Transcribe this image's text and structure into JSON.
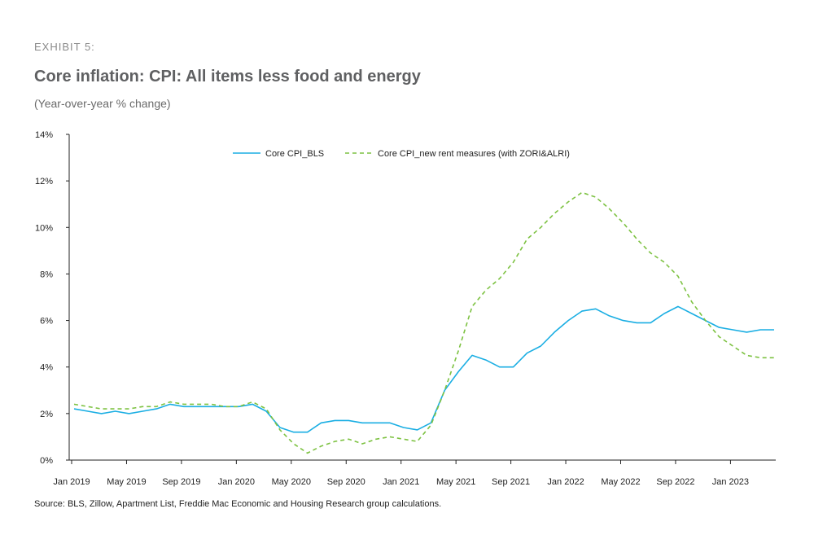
{
  "header": {
    "exhibit": "EXHIBIT 5:",
    "title": "Core inflation: CPI: All items less food and energy",
    "subtitle": "(Year-over-year % change)"
  },
  "footer": {
    "source": "Source: BLS, Zillow, Apartment List, Freddie Mac Economic and Housing Research group calculations."
  },
  "colors": {
    "bls": "#1aaee3",
    "new": "#7dc242",
    "axis": "#222222"
  },
  "chart_data": {
    "type": "line",
    "title": "Core inflation: CPI: All items less food and energy",
    "ylabel": "Year-over-year % change",
    "ylim": [
      0,
      14
    ],
    "yticks": [
      0,
      2,
      4,
      6,
      8,
      10,
      12,
      14
    ],
    "ytick_labels": [
      "0%",
      "2%",
      "4%",
      "6%",
      "8%",
      "10%",
      "12%",
      "14%"
    ],
    "xtick_labels": [
      "Jan 2019",
      "May 2019",
      "Sep 2019",
      "Jan 2020",
      "May 2020",
      "Sep 2020",
      "Jan 2021",
      "May 2021",
      "Sep 2021",
      "Jan 2022",
      "May 2022",
      "Sep 2022",
      "Jan 2023"
    ],
    "xtick_index": [
      0,
      4,
      8,
      12,
      16,
      20,
      24,
      28,
      32,
      36,
      40,
      44,
      48
    ],
    "x": [
      "Jan 2019",
      "Feb 2019",
      "Mar 2019",
      "Apr 2019",
      "May 2019",
      "Jun 2019",
      "Jul 2019",
      "Aug 2019",
      "Sep 2019",
      "Oct 2019",
      "Nov 2019",
      "Dec 2019",
      "Jan 2020",
      "Feb 2020",
      "Mar 2020",
      "Apr 2020",
      "May 2020",
      "Jun 2020",
      "Jul 2020",
      "Aug 2020",
      "Sep 2020",
      "Oct 2020",
      "Nov 2020",
      "Dec 2020",
      "Jan 2021",
      "Feb 2021",
      "Mar 2021",
      "Apr 2021",
      "May 2021",
      "Jun 2021",
      "Jul 2021",
      "Aug 2021",
      "Sep 2021",
      "Oct 2021",
      "Nov 2021",
      "Dec 2021",
      "Jan 2022",
      "Feb 2022",
      "Mar 2022",
      "Apr 2022",
      "May 2022",
      "Jun 2022",
      "Jul 2022",
      "Aug 2022",
      "Sep 2022",
      "Oct 2022",
      "Nov 2022",
      "Dec 2022",
      "Jan 2023",
      "Feb 2023",
      "Mar 2023",
      "Apr 2023"
    ],
    "legend": {
      "placement": "top-center"
    },
    "series": [
      {
        "name": "Core CPI_BLS",
        "style": "solid",
        "color_key": "bls",
        "values": [
          2.2,
          2.1,
          2.0,
          2.1,
          2.0,
          2.1,
          2.2,
          2.4,
          2.3,
          2.3,
          2.3,
          2.3,
          2.3,
          2.4,
          2.1,
          1.4,
          1.2,
          1.2,
          1.6,
          1.7,
          1.7,
          1.6,
          1.6,
          1.6,
          1.4,
          1.3,
          1.6,
          3.0,
          3.8,
          4.5,
          4.3,
          4.0,
          4.0,
          4.6,
          4.9,
          5.5,
          6.0,
          6.4,
          6.5,
          6.2,
          6.0,
          5.9,
          5.9,
          6.3,
          6.6,
          6.3,
          6.0,
          5.7,
          5.6,
          5.5,
          5.6,
          5.6
        ]
      },
      {
        "name": "Core CPI_new rent measures (with ZORI&ALRI)",
        "style": "dashed",
        "color_key": "new",
        "values": [
          2.4,
          2.3,
          2.2,
          2.2,
          2.2,
          2.3,
          2.3,
          2.5,
          2.4,
          2.4,
          2.4,
          2.3,
          2.3,
          2.5,
          2.2,
          1.3,
          0.7,
          0.3,
          0.6,
          0.8,
          0.9,
          0.7,
          0.9,
          1.0,
          0.9,
          0.8,
          1.5,
          3.0,
          4.7,
          6.6,
          7.3,
          7.8,
          8.5,
          9.5,
          10.0,
          10.6,
          11.1,
          11.5,
          11.3,
          10.8,
          10.2,
          9.5,
          8.9,
          8.5,
          7.9,
          6.8,
          6.0,
          5.3,
          4.9,
          4.5,
          4.4,
          4.4
        ]
      }
    ]
  }
}
